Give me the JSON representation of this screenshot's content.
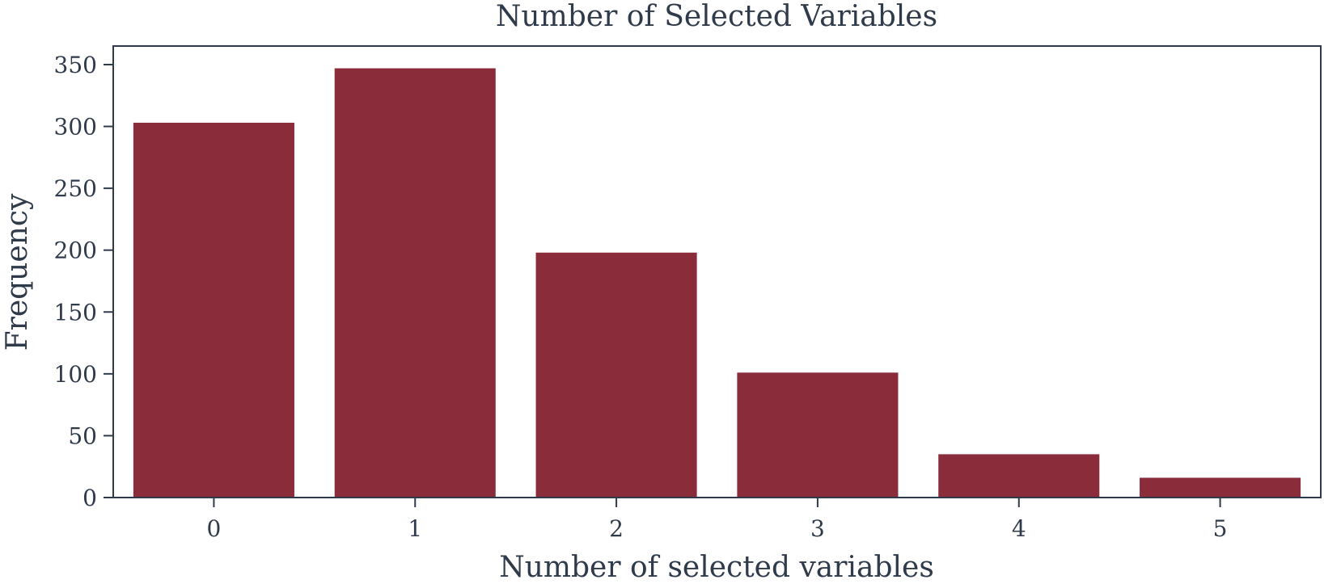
{
  "chart_data": {
    "type": "bar",
    "title": "Number of Selected Variables",
    "xlabel": "Number of selected variables",
    "ylabel": "Frequency",
    "categories": [
      "0",
      "1",
      "2",
      "3",
      "4",
      "5"
    ],
    "values": [
      303,
      347,
      198,
      101,
      35,
      16
    ],
    "ylim": [
      0,
      365
    ],
    "yticks": [
      0,
      50,
      100,
      150,
      200,
      250,
      300,
      350
    ],
    "bar_color": "#8b2c3a",
    "text_color": "#2f3b4a",
    "grid": false
  }
}
